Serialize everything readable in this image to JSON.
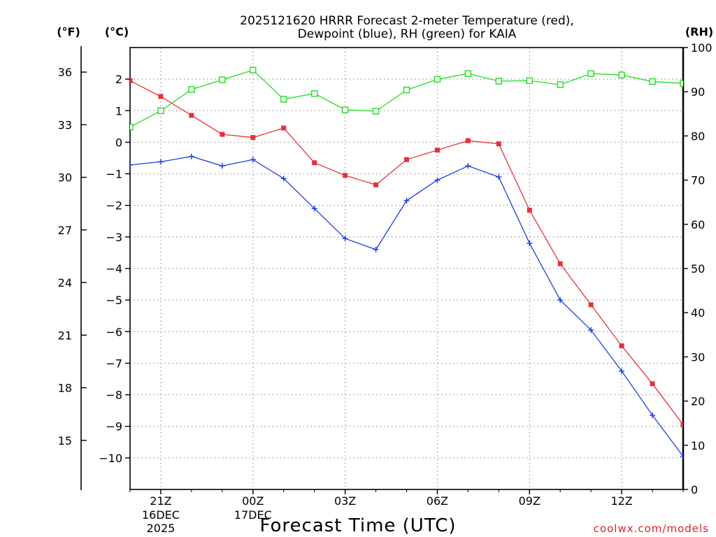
{
  "chart_data": {
    "type": "line",
    "title_lines": [
      "2025121620 HRRR Forecast 2-meter Temperature (red),",
      "Dewpoint (blue), RH (green) for KAIA"
    ],
    "xlabel": "Forecast Time (UTC)",
    "credit": "coolwx.com/models",
    "units": {
      "fahrenheit": "(°F)",
      "celsius": "(°C)",
      "rh": "(RH)"
    },
    "x_hours": [
      20,
      21,
      22,
      23,
      24,
      25,
      26,
      27,
      28,
      29,
      30,
      31,
      32,
      33,
      34,
      35,
      36,
      37,
      38
    ],
    "xlim": [
      20,
      38
    ],
    "x_ticks": [
      {
        "hour": 21,
        "label": "21Z",
        "sub1": "16DEC",
        "sub2": "2025"
      },
      {
        "hour": 24,
        "label": "00Z",
        "sub1": "17DEC",
        "sub2": ""
      },
      {
        "hour": 27,
        "label": "03Z",
        "sub1": "",
        "sub2": ""
      },
      {
        "hour": 30,
        "label": "06Z",
        "sub1": "",
        "sub2": ""
      },
      {
        "hour": 33,
        "label": "09Z",
        "sub1": "",
        "sub2": ""
      },
      {
        "hour": 36,
        "label": "12Z",
        "sub1": "",
        "sub2": ""
      }
    ],
    "celsius_axis": {
      "ylim": [
        -11,
        3
      ],
      "ticks": [
        "2",
        "1",
        "0",
        "−1",
        "−2",
        "−3",
        "−4",
        "−5",
        "−6",
        "−7",
        "−8",
        "−9",
        "−10"
      ],
      "tick_values": [
        2,
        1,
        0,
        -1,
        -2,
        -3,
        -4,
        -5,
        -6,
        -7,
        -8,
        -9,
        -10
      ]
    },
    "fahrenheit_axis": {
      "ticks": [
        "36",
        "33",
        "30",
        "27",
        "24",
        "21",
        "18",
        "15"
      ],
      "tick_values": [
        36,
        33,
        30,
        27,
        24,
        21,
        18,
        15
      ]
    },
    "rh_axis": {
      "ylim": [
        0,
        100
      ],
      "ticks": [
        "100",
        "90",
        "80",
        "70",
        "60",
        "50",
        "40",
        "30",
        "20",
        "10",
        "0"
      ],
      "tick_values": [
        100,
        90,
        80,
        70,
        60,
        50,
        40,
        30,
        20,
        10,
        0
      ]
    },
    "series": [
      {
        "name": "Temperature",
        "color": "#e8303a",
        "axis": "celsius",
        "marker": "filled-square",
        "values": [
          1.95,
          1.45,
          0.85,
          0.25,
          0.15,
          0.45,
          -0.65,
          -1.05,
          -1.35,
          -0.55,
          -0.25,
          0.05,
          -0.05,
          -2.15,
          -3.85,
          -5.15,
          -6.45,
          -7.65,
          -8.95
        ]
      },
      {
        "name": "Dewpoint",
        "color": "#2040e0",
        "axis": "celsius",
        "marker": "plus",
        "values": [
          -0.72,
          -0.62,
          -0.45,
          -0.75,
          -0.55,
          -1.15,
          -2.1,
          -3.05,
          -3.4,
          -1.85,
          -1.2,
          -0.75,
          -1.1,
          -3.2,
          -5.0,
          -5.95,
          -7.25,
          -8.65,
          -9.95
        ]
      },
      {
        "name": "RH",
        "color": "#22dd22",
        "axis": "rh",
        "marker": "open-square",
        "values": [
          82,
          85.7,
          90.5,
          92.7,
          94.9,
          88.3,
          89.6,
          85.9,
          85.6,
          90.4,
          92.8,
          94.1,
          92.4,
          92.5,
          91.6,
          94.1,
          93.8,
          92.3,
          91.9
        ]
      }
    ],
    "grid": true
  }
}
